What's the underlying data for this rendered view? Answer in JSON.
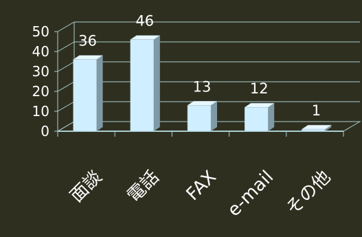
{
  "chart_data": {
    "type": "bar",
    "title": "",
    "xlabel": "",
    "ylabel": "",
    "categories": [
      "面談",
      "電話",
      "FAX",
      "e-mail",
      "その他"
    ],
    "values": [
      36,
      46,
      13,
      12,
      1
    ],
    "data_labels": [
      "36",
      "46",
      "13",
      "12",
      "1"
    ],
    "ylim": [
      0,
      50
    ],
    "yticks": [
      0,
      10,
      20,
      30,
      40,
      50
    ],
    "ytick_labels": [
      "0",
      "10",
      "20",
      "30",
      "40",
      "50"
    ],
    "grid": true,
    "legend": "none",
    "style": "3d-column",
    "colors": {
      "background": "#2f2f20",
      "bar_front": "#cfeeff",
      "bar_side": "#7f9aa6",
      "bar_top": "#e8f8ff",
      "text": "#ffffff",
      "axis": "#a9cfd0"
    }
  }
}
